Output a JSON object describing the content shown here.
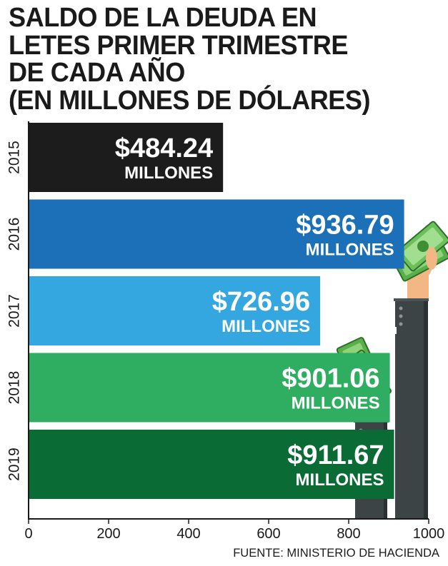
{
  "title_lines": [
    "SALDO DE LA DEUDA EN",
    "LETES PRIMER TRIMESTRE",
    "DE CADA AÑO",
    "(EN MILLONES DE DÓLARES)"
  ],
  "source": "FUENTE: MINISTERIO DE HACIENDA",
  "chart_data": {
    "type": "bar",
    "orientation": "horizontal",
    "title": "SALDO DE LA DEUDA EN LETES PRIMER TRIMESTRE DE CADA AÑO (EN MILLONES DE DÓLARES)",
    "categories": [
      "2015",
      "2016",
      "2017",
      "2018",
      "2019"
    ],
    "values": [
      484.24,
      936.79,
      726.96,
      901.06,
      911.67
    ],
    "value_labels": [
      "$484.24",
      "$936.79",
      "$726.96",
      "$901.06",
      "$911.67"
    ],
    "unit_label": "MILLONES",
    "bar_colors": [
      "#1c1c1c",
      "#1b70b8",
      "#35a7e0",
      "#2fae62",
      "#0b6b35"
    ],
    "x_ticks": [
      0,
      200,
      400,
      600,
      800,
      1000
    ],
    "xlim": [
      0,
      1000
    ],
    "grid": false
  }
}
